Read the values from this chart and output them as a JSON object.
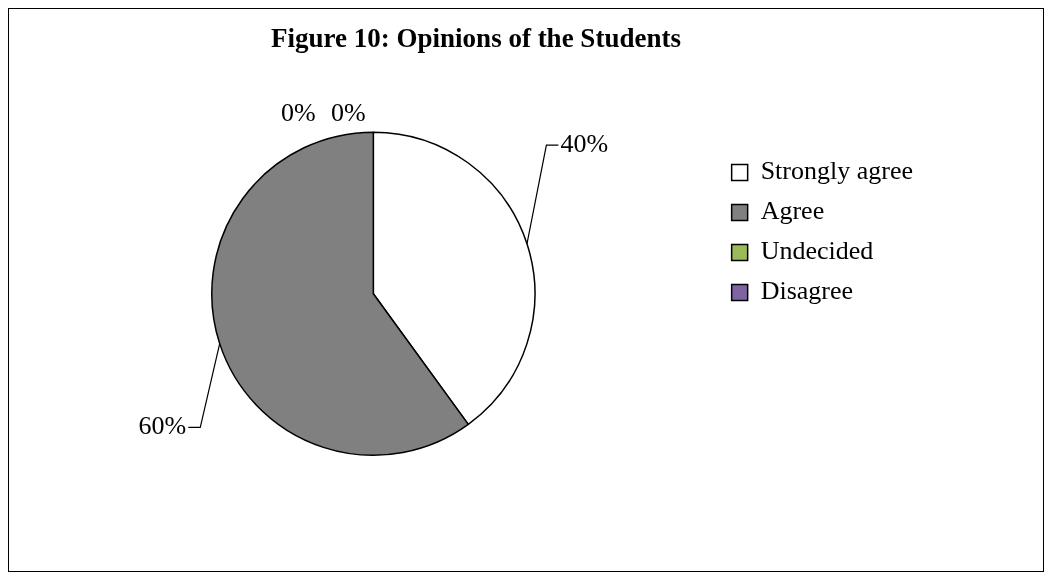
{
  "chart_data": {
    "type": "pie",
    "title": "Figure 10: Opinions of the Students",
    "categories": [
      "Strongly agree",
      "Agree",
      "Undecided",
      "Disagree"
    ],
    "values": [
      40,
      60,
      0,
      0
    ],
    "colors": [
      "#ffffff",
      "#808080",
      "#9bbb59",
      "#8064a2"
    ],
    "value_labels": [
      "40%",
      "60%",
      "0%",
      "0%"
    ],
    "legend": "right"
  }
}
